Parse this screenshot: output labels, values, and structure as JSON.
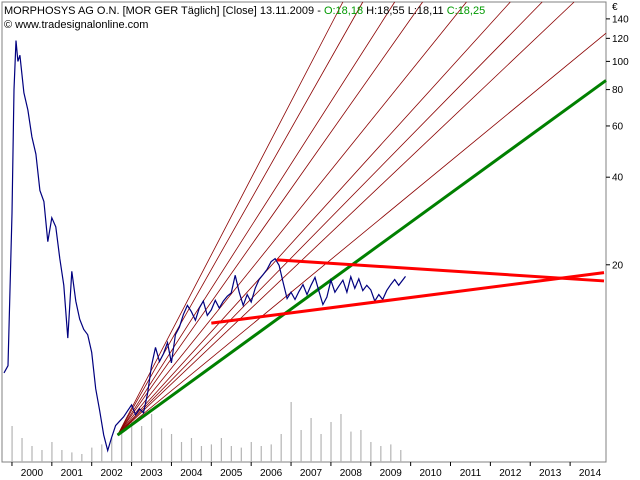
{
  "header": {
    "title": "MORPHOSYS AG O.N. [MOR GER  Täglich] [Close] 13.11.2009 - ",
    "open": "O:18,18",
    "high": "H:18,55",
    "low": "L:18,11",
    "close": "C:18,25",
    "copyright": "© www.tradesignalonline.com",
    "currency": "€"
  },
  "colors": {
    "price": "#00007f",
    "triangle": "#ff0000",
    "support": "#008000",
    "fan": "#8b0000",
    "volume": "#b4b4b4",
    "open": "#009900",
    "close": "#009900",
    "plot_border": "#808080"
  },
  "chart_data": {
    "type": "line",
    "y_scale": "log",
    "x_tick_labels": [
      "2000",
      "2001",
      "2002",
      "2003",
      "2004",
      "2005",
      "2006",
      "2007",
      "2008",
      "2009",
      "2010",
      "2011",
      "2012",
      "2013",
      "2014"
    ],
    "y_tick_labels": [
      "140",
      "120",
      "100",
      "80",
      "60",
      "40",
      "20"
    ],
    "y_ticks": [
      140,
      120,
      100,
      80,
      60,
      40,
      20
    ],
    "ylim": [
      4.2,
      160
    ],
    "xlim": [
      1999.75,
      2014.9
    ],
    "series": [
      {
        "x": [
          1999.8,
          1999.9,
          2000.0,
          2000.05,
          2000.1,
          2000.15,
          2000.2,
          2000.3,
          2000.4,
          2000.5,
          2000.6,
          2000.7,
          2000.8,
          2000.9,
          2001.0,
          2001.1,
          2001.2,
          2001.3,
          2001.4,
          2001.5,
          2001.6,
          2001.7,
          2001.8,
          2001.9,
          2002.0,
          2002.1,
          2002.2,
          2002.3,
          2002.4,
          2002.5,
          2002.6,
          2002.7,
          2002.8,
          2002.9,
          2003.0,
          2003.1,
          2003.2,
          2003.3,
          2003.4,
          2003.5,
          2003.6,
          2003.7,
          2003.8,
          2003.9,
          2004.0,
          2004.1,
          2004.2,
          2004.3,
          2004.4,
          2004.5,
          2004.6,
          2004.7,
          2004.8,
          2004.9,
          2005.0,
          2005.1,
          2005.2,
          2005.3,
          2005.4,
          2005.5,
          2005.6,
          2005.7,
          2005.8,
          2005.9,
          2006.0,
          2006.1,
          2006.2,
          2006.3,
          2006.4,
          2006.5,
          2006.6,
          2006.7,
          2006.8,
          2006.9,
          2007.0,
          2007.1,
          2007.2,
          2007.3,
          2007.4,
          2007.5,
          2007.6,
          2007.7,
          2007.8,
          2007.9,
          2008.0,
          2008.1,
          2008.2,
          2008.3,
          2008.4,
          2008.5,
          2008.6,
          2008.7,
          2008.8,
          2008.9,
          2009.0,
          2009.1,
          2009.2,
          2009.3,
          2009.4,
          2009.5,
          2009.6,
          2009.7,
          2009.87
        ],
        "values": [
          8.5,
          9.0,
          30,
          80,
          118,
          100,
          105,
          78,
          68,
          55,
          48,
          36,
          33,
          24,
          29,
          27,
          21,
          17,
          11.2,
          19,
          15,
          13,
          12,
          11.5,
          10,
          7.5,
          6.3,
          5.2,
          4.6,
          5.1,
          5.6,
          5.8,
          6.0,
          6.3,
          6.6,
          6.1,
          6.4,
          6.2,
          7.2,
          9.0,
          10.4,
          9.3,
          9.9,
          10.8,
          9.2,
          11.5,
          12.2,
          13.5,
          14.5,
          13.8,
          12.9,
          14.2,
          15.0,
          13.4,
          14.0,
          15.1,
          14.2,
          15.0,
          15.6,
          16.0,
          18.4,
          16.1,
          14.5,
          15.8,
          14.9,
          16.6,
          17.8,
          18.5,
          19.3,
          20.5,
          21.0,
          19.9,
          17.4,
          15.3,
          16.1,
          15.2,
          16.2,
          17.1,
          15.8,
          17.0,
          18.1,
          16.2,
          14.6,
          15.5,
          17.7,
          16.1,
          16.9,
          17.7,
          16.1,
          18.2,
          16.6,
          17.9,
          16.3,
          17.0,
          16.4,
          15.0,
          15.8,
          15.2,
          16.3,
          17.1,
          17.8,
          17.0,
          18.25
        ]
      }
    ],
    "volume": {
      "x": [
        2000.0,
        2000.25,
        2000.5,
        2000.75,
        2001.0,
        2001.25,
        2001.5,
        2001.75,
        2002.0,
        2002.25,
        2002.5,
        2002.75,
        2003.0,
        2003.25,
        2003.5,
        2003.75,
        2004.0,
        2004.25,
        2004.5,
        2004.75,
        2005.0,
        2005.25,
        2005.5,
        2005.75,
        2006.0,
        2006.25,
        2006.5,
        2006.75,
        2007.0,
        2007.25,
        2007.5,
        2007.75,
        2008.0,
        2008.25,
        2008.5,
        2008.75,
        2009.0,
        2009.25,
        2009.5,
        2009.75
      ],
      "values": [
        0.45,
        0.3,
        0.2,
        0.15,
        0.25,
        0.15,
        0.12,
        0.1,
        0.18,
        0.22,
        0.3,
        0.38,
        0.5,
        0.45,
        0.6,
        0.42,
        0.35,
        0.25,
        0.3,
        0.2,
        0.22,
        0.3,
        0.2,
        0.18,
        0.25,
        0.2,
        0.22,
        0.35,
        0.75,
        0.4,
        0.55,
        0.35,
        0.5,
        0.6,
        0.38,
        0.4,
        0.25,
        0.2,
        0.22,
        0.15
      ]
    },
    "triangle_lines": [
      {
        "x": [
          2005.0,
          2014.85
        ],
        "values": [
          12.6,
          18.8
        ]
      },
      {
        "x": [
          2006.65,
          2014.85
        ],
        "values": [
          20.8,
          17.6
        ]
      }
    ],
    "support_line": {
      "x": [
        2002.65,
        2014.9
      ],
      "values": [
        5.2,
        86
      ]
    },
    "fan_lines": [
      {
        "x": [
          2002.65,
          2008.3
        ],
        "values": [
          5.2,
          160
        ]
      },
      {
        "x": [
          2002.65,
          2008.8
        ],
        "values": [
          5.2,
          160
        ]
      },
      {
        "x": [
          2002.65,
          2009.6
        ],
        "values": [
          5.2,
          160
        ]
      },
      {
        "x": [
          2002.65,
          2010.3
        ],
        "values": [
          5.2,
          160
        ]
      },
      {
        "x": [
          2002.65,
          2011.4
        ],
        "values": [
          5.2,
          160
        ]
      },
      {
        "x": [
          2002.65,
          2012.5
        ],
        "values": [
          5.2,
          160
        ]
      },
      {
        "x": [
          2002.65,
          2013.3
        ],
        "values": [
          5.2,
          160
        ]
      },
      {
        "x": [
          2002.65,
          2014.1
        ],
        "values": [
          5.2,
          160
        ]
      },
      {
        "x": [
          2002.65,
          2014.9
        ],
        "values": [
          5.2,
          125
        ]
      }
    ]
  }
}
